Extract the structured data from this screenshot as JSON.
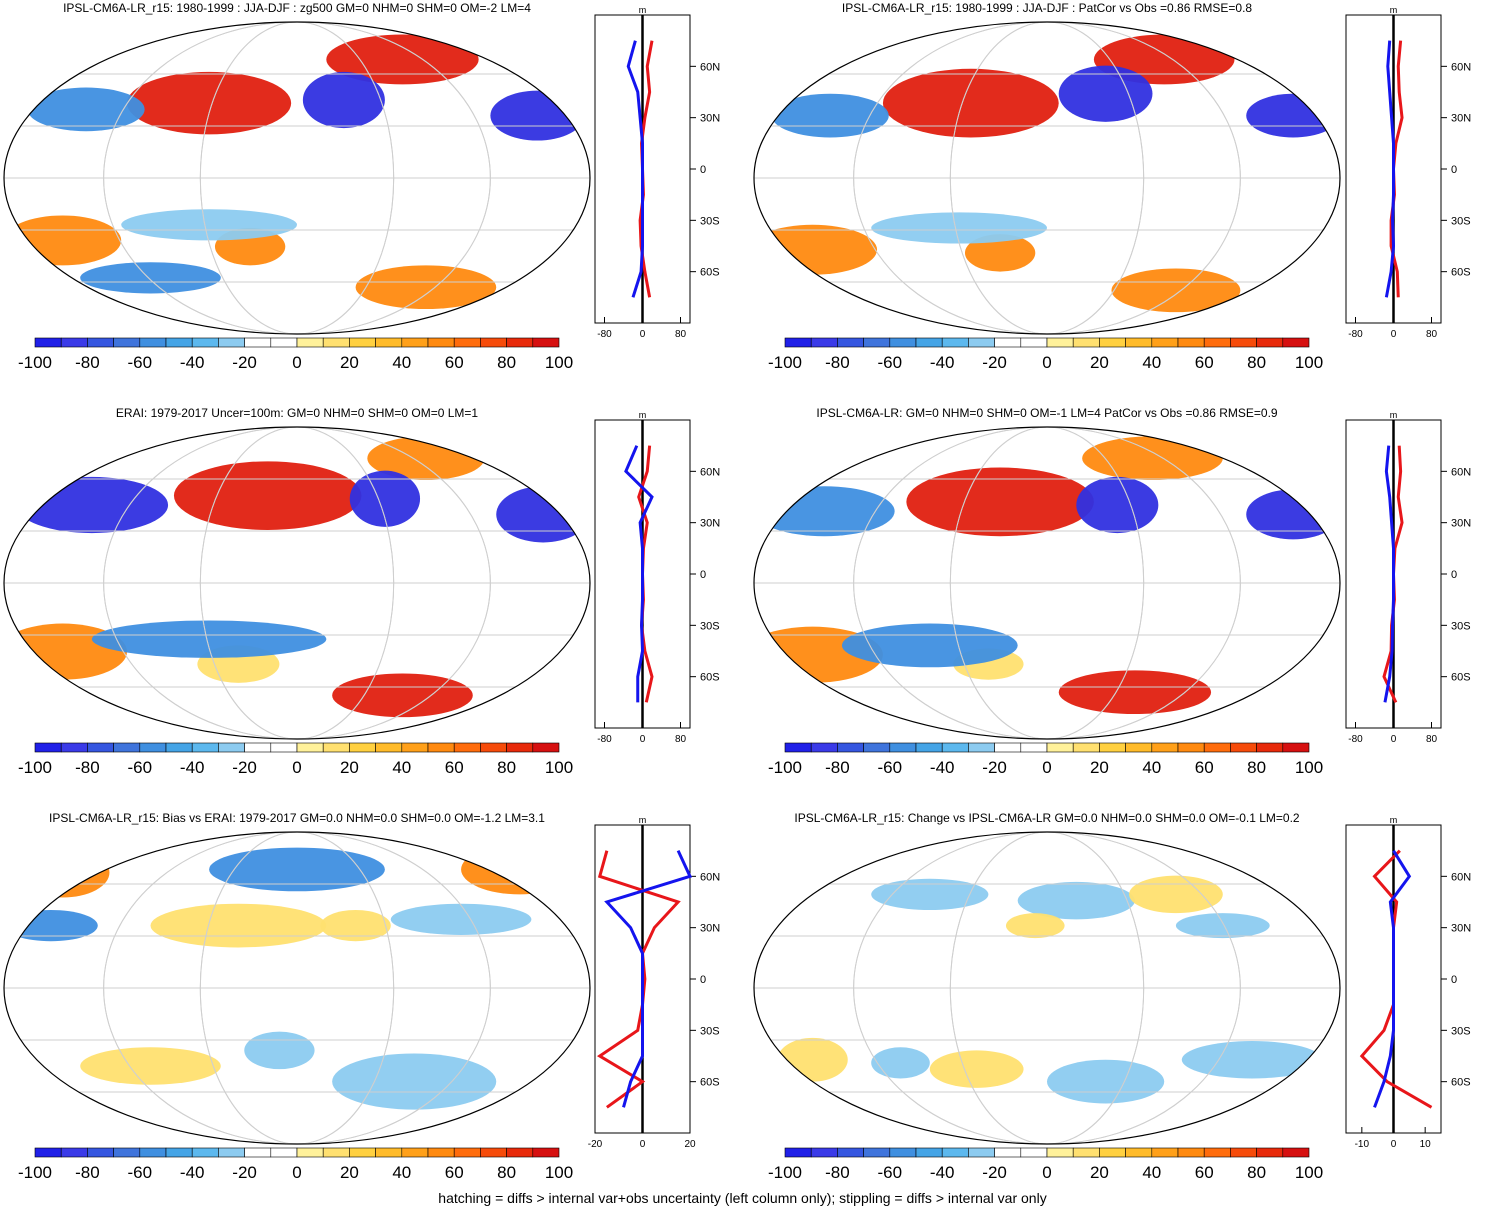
{
  "footer": "hatching = diffs > internal var+obs uncertainty (left column only); stippling = diffs > internal var only",
  "colorbar": {
    "tick_labels": [
      "-100",
      "-80",
      "-60",
      "-40",
      "-20",
      "0",
      "20",
      "40",
      "60",
      "80",
      "100"
    ],
    "colors": [
      "#2020e8",
      "#3a3ae8",
      "#3556e0",
      "#3f74dc",
      "#3f8fe0",
      "#44a4e6",
      "#5cb8ee",
      "#8ccbf0",
      "#ffffff",
      "#ffffff",
      "#fff19a",
      "#ffe070",
      "#ffd040",
      "#ffbb2a",
      "#ffa019",
      "#ff8a10",
      "#ff6c0c",
      "#f64b0a",
      "#e82a0a",
      "#d61010"
    ]
  },
  "colors": {
    "red": "#e8161a",
    "blue": "#1414ee",
    "land": "#000000",
    "grid": "#cfcfcf",
    "strong_red": "#e02010",
    "orange": "#ff8a10",
    "yellow": "#ffe070",
    "strong_blue": "#3030e0",
    "mid_blue": "#3f8fe0",
    "light_blue": "#8ccbf0"
  },
  "chart_data": [
    {
      "type": "map",
      "panel": "a",
      "row": 0,
      "col": 0,
      "title": "IPSL-CM6A-LR_r15: 1980-1999 : JJA-DJF : zg500 GM=0 NHM=0 SHM=0 OM=-2 LM=4",
      "zonal": {
        "xticks": [
          "-80",
          "0",
          "80"
        ],
        "xlim": [
          -100,
          100
        ],
        "ylabels": [
          "60N",
          "30N",
          "0",
          "30S",
          "60S"
        ],
        "unit": "m",
        "lat": [
          75,
          60,
          45,
          30,
          15,
          0,
          -15,
          -30,
          -45,
          -60,
          -75
        ],
        "red": [
          20,
          10,
          15,
          5,
          -2,
          0,
          2,
          -5,
          -3,
          5,
          15
        ],
        "blue": [
          -15,
          -30,
          -10,
          -5,
          0,
          0,
          0,
          0,
          0,
          -3,
          -20
        ]
      }
    },
    {
      "type": "map",
      "panel": "b",
      "row": 0,
      "col": 1,
      "title": "IPSL-CM6A-LR_r15: 1980-1999 : JJA-DJF : PatCor vs Obs =0.86 RMSE=0.8",
      "zonal": {
        "xticks": [
          "-80",
          "0",
          "80"
        ],
        "xlim": [
          -100,
          100
        ],
        "ylabels": [
          "60N",
          "30N",
          "0",
          "30S",
          "60S"
        ],
        "unit": "m",
        "lat": [
          75,
          60,
          45,
          30,
          15,
          0,
          -15,
          -30,
          -45,
          -60,
          -75
        ],
        "red": [
          15,
          10,
          12,
          18,
          5,
          0,
          2,
          -5,
          -5,
          8,
          10
        ],
        "blue": [
          -8,
          -12,
          -8,
          -4,
          0,
          0,
          0,
          -2,
          0,
          -5,
          -15
        ]
      }
    },
    {
      "type": "map",
      "panel": "c",
      "row": 1,
      "col": 0,
      "title": "ERAI: 1979-2017 Uncer=100m: GM=0 NHM=0 SHM=0 OM=0 LM=1",
      "zonal": {
        "xticks": [
          "-80",
          "0",
          "80"
        ],
        "xlim": [
          -100,
          100
        ],
        "ylabels": [
          "60N",
          "30N",
          "0",
          "30S",
          "60S"
        ],
        "unit": "m",
        "lat": [
          75,
          60,
          45,
          30,
          15,
          0,
          -15,
          -30,
          -45,
          -60,
          -75
        ],
        "red": [
          15,
          10,
          -8,
          10,
          2,
          0,
          2,
          -2,
          5,
          20,
          8
        ],
        "blue": [
          -12,
          -35,
          20,
          -5,
          0,
          0,
          0,
          -2,
          0,
          -10,
          -10
        ]
      }
    },
    {
      "type": "map",
      "panel": "d",
      "row": 1,
      "col": 1,
      "title": "IPSL-CM6A-LR: GM=0 NHM=0 SHM=0 OM=-1 LM=4 PatCor vs Obs =0.86 RMSE=0.9",
      "zonal": {
        "xticks": [
          "-80",
          "0",
          "80"
        ],
        "xlim": [
          -100,
          100
        ],
        "ylabels": [
          "60N",
          "30N",
          "0",
          "30S",
          "60S"
        ],
        "unit": "m",
        "lat": [
          75,
          60,
          45,
          30,
          15,
          0,
          -15,
          -30,
          -45,
          -60,
          -75
        ],
        "red": [
          12,
          15,
          10,
          18,
          3,
          0,
          2,
          -4,
          -5,
          -20,
          5
        ],
        "blue": [
          -10,
          -15,
          -8,
          -4,
          0,
          0,
          0,
          -2,
          -3,
          -8,
          -18
        ]
      }
    },
    {
      "type": "map",
      "panel": "e",
      "row": 2,
      "col": 0,
      "title": "IPSL-CM6A-LR_r15: Bias vs ERAI: 1979-2017 GM=0.0 NHM=0.0 SHM=0.0 OM=-1.2 LM=3.1",
      "zonal": {
        "xticks": [
          "-20",
          "0",
          "20"
        ],
        "xlim": [
          -20,
          20
        ],
        "ylabels": [
          "60N",
          "30N",
          "0",
          "30S",
          "60S"
        ],
        "unit": "m",
        "lat": [
          75,
          60,
          45,
          30,
          15,
          0,
          -15,
          -30,
          -45,
          -60,
          -75
        ],
        "red": [
          -15,
          -18,
          15,
          5,
          0,
          1,
          0,
          -2,
          -18,
          0,
          -15
        ],
        "blue": [
          15,
          20,
          -15,
          -5,
          0,
          0,
          0,
          0,
          0,
          -5,
          -8
        ]
      }
    },
    {
      "type": "map",
      "panel": "f",
      "row": 2,
      "col": 1,
      "title": "IPSL-CM6A-LR_r15: Change vs IPSL-CM6A-LR GM=0.0 NHM=0.0 SHM=0.0 OM=-0.1 LM=0.2",
      "zonal": {
        "xticks": [
          "-10",
          "0",
          "10"
        ],
        "xlim": [
          -15,
          15
        ],
        "ylabels": [
          "60N",
          "30N",
          "0",
          "30S",
          "60S"
        ],
        "unit": "m",
        "lat": [
          75,
          60,
          45,
          30,
          15,
          0,
          -15,
          -30,
          -45,
          -60,
          -75
        ],
        "red": [
          2,
          -6,
          1,
          0,
          0,
          0,
          0,
          -3,
          -10,
          -2,
          12
        ],
        "blue": [
          0,
          5,
          -1,
          0,
          0,
          0,
          0,
          0,
          -1,
          -3,
          -6
        ]
      }
    }
  ]
}
